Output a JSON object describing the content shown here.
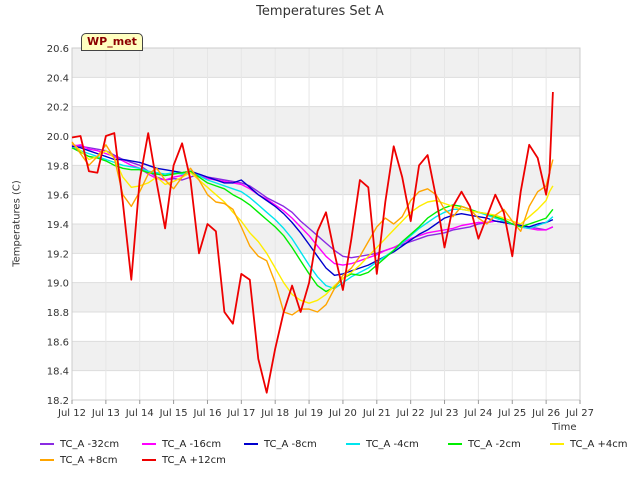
{
  "badge": "WP_met",
  "chart_data": {
    "type": "line",
    "title": "Temperatures Set A",
    "xlabel": "Time",
    "ylabel": "Temperatures (C)",
    "ylim": [
      18.2,
      20.6
    ],
    "xlim": [
      0,
      15
    ],
    "x_ticks": [
      "Jul 12",
      "Jul 13",
      "Jul 14",
      "Jul 15",
      "Jul 16",
      "Jul 17",
      "Jul 18",
      "Jul 19",
      "Jul 20",
      "Jul 21",
      "Jul 22",
      "Jul 23",
      "Jul 24",
      "Jul 25",
      "Jul 26",
      "Jul 27"
    ],
    "y_ticks": [
      18.2,
      18.4,
      18.6,
      18.8,
      19.0,
      19.2,
      19.4,
      19.6,
      19.8,
      20.0,
      20.2,
      20.4,
      20.6
    ],
    "grid": true,
    "legend_placement": "bottom",
    "x": [
      0,
      0.25,
      0.5,
      0.75,
      1,
      1.25,
      1.5,
      1.75,
      2,
      2.25,
      2.5,
      2.75,
      3,
      3.25,
      3.5,
      3.75,
      4,
      4.25,
      4.5,
      4.75,
      5,
      5.25,
      5.5,
      5.75,
      6,
      6.25,
      6.5,
      6.75,
      7,
      7.25,
      7.5,
      7.75,
      8,
      8.25,
      8.5,
      8.75,
      9,
      9.25,
      9.5,
      9.75,
      10,
      10.25,
      10.5,
      10.75,
      11,
      11.25,
      11.5,
      11.75,
      12,
      12.25,
      12.5,
      12.75,
      13,
      13.25,
      13.5,
      13.75,
      14,
      14.1,
      14.2
    ],
    "series": [
      {
        "name": "TC_A -32cm",
        "color": "#8a2be2",
        "values": [
          19.94,
          19.93,
          19.92,
          19.91,
          19.9,
          19.87,
          19.84,
          19.82,
          19.8,
          19.76,
          19.72,
          19.7,
          19.71,
          19.7,
          19.72,
          19.74,
          19.72,
          19.71,
          19.7,
          19.69,
          19.68,
          19.66,
          19.62,
          19.58,
          19.55,
          19.52,
          19.48,
          19.42,
          19.37,
          19.32,
          19.27,
          19.22,
          19.18,
          19.17,
          19.18,
          19.19,
          19.2,
          19.22,
          19.24,
          19.26,
          19.28,
          19.3,
          19.32,
          19.33,
          19.34,
          19.36,
          19.37,
          19.38,
          19.4,
          19.41,
          19.42,
          19.41,
          19.4,
          19.39,
          19.38,
          19.37,
          19.36,
          19.37,
          19.38
        ]
      },
      {
        "name": "TC_A -16cm",
        "color": "#ff00ff",
        "values": [
          19.93,
          19.94,
          19.91,
          19.9,
          19.88,
          19.86,
          19.83,
          19.8,
          19.78,
          19.74,
          19.71,
          19.7,
          19.72,
          19.73,
          19.75,
          19.73,
          19.71,
          19.7,
          19.69,
          19.68,
          19.67,
          19.64,
          19.6,
          19.57,
          19.53,
          19.49,
          19.44,
          19.38,
          19.32,
          19.25,
          19.18,
          19.13,
          19.12,
          19.13,
          19.15,
          19.17,
          19.19,
          19.22,
          19.24,
          19.27,
          19.3,
          19.32,
          19.34,
          19.35,
          19.36,
          19.37,
          19.39,
          19.4,
          19.41,
          19.41,
          19.42,
          19.41,
          19.4,
          19.38,
          19.37,
          19.36,
          19.36,
          19.37,
          19.38
        ]
      },
      {
        "name": "TC_A -8cm",
        "color": "#0000cd",
        "values": [
          19.93,
          19.92,
          19.9,
          19.88,
          19.86,
          19.84,
          19.84,
          19.83,
          19.82,
          19.8,
          19.78,
          19.77,
          19.76,
          19.75,
          19.76,
          19.74,
          19.72,
          19.7,
          19.68,
          19.68,
          19.7,
          19.65,
          19.6,
          19.56,
          19.52,
          19.47,
          19.41,
          19.34,
          19.26,
          19.18,
          19.1,
          19.05,
          19.06,
          19.08,
          19.1,
          19.12,
          19.15,
          19.18,
          19.21,
          19.25,
          19.29,
          19.33,
          19.36,
          19.4,
          19.44,
          19.46,
          19.47,
          19.46,
          19.45,
          19.44,
          19.42,
          19.41,
          19.4,
          19.39,
          19.38,
          19.4,
          19.41,
          19.42,
          19.43
        ]
      },
      {
        "name": "TC_A -4cm",
        "color": "#00e5ee",
        "values": [
          19.92,
          19.9,
          19.88,
          19.86,
          19.84,
          19.82,
          19.8,
          19.79,
          19.78,
          19.76,
          19.75,
          19.74,
          19.75,
          19.74,
          19.75,
          19.73,
          19.7,
          19.68,
          19.66,
          19.64,
          19.62,
          19.58,
          19.53,
          19.48,
          19.43,
          19.37,
          19.3,
          19.21,
          19.12,
          19.04,
          18.98,
          18.96,
          19.0,
          19.04,
          19.07,
          19.1,
          19.14,
          19.18,
          19.22,
          19.27,
          19.32,
          19.37,
          19.41,
          19.45,
          19.48,
          19.5,
          19.5,
          19.49,
          19.48,
          19.46,
          19.44,
          19.42,
          19.4,
          19.38,
          19.37,
          19.39,
          19.41,
          19.43,
          19.45
        ]
      },
      {
        "name": "TC_A -2cm",
        "color": "#00ee00",
        "values": [
          19.92,
          19.89,
          19.86,
          19.85,
          19.83,
          19.8,
          19.78,
          19.77,
          19.77,
          19.75,
          19.74,
          19.73,
          19.74,
          19.75,
          19.76,
          19.72,
          19.68,
          19.66,
          19.64,
          19.6,
          19.57,
          19.53,
          19.48,
          19.43,
          19.38,
          19.32,
          19.24,
          19.15,
          19.06,
          18.98,
          18.94,
          18.97,
          19.03,
          19.06,
          19.05,
          19.07,
          19.12,
          19.17,
          19.22,
          19.28,
          19.33,
          19.38,
          19.44,
          19.48,
          19.51,
          19.53,
          19.52,
          19.5,
          19.48,
          19.47,
          19.45,
          19.43,
          19.4,
          19.38,
          19.4,
          19.42,
          19.44,
          19.47,
          19.5
        ]
      },
      {
        "name": "TC_A +4cm",
        "color": "#ffee00",
        "values": [
          19.95,
          19.9,
          19.84,
          19.86,
          19.9,
          19.85,
          19.72,
          19.65,
          19.66,
          19.68,
          19.72,
          19.67,
          19.69,
          19.72,
          19.75,
          19.7,
          19.65,
          19.6,
          19.55,
          19.48,
          19.42,
          19.34,
          19.28,
          19.2,
          19.1,
          19.0,
          18.92,
          18.88,
          18.86,
          18.88,
          18.92,
          18.98,
          19.03,
          19.07,
          19.12,
          19.18,
          19.24,
          19.3,
          19.36,
          19.42,
          19.48,
          19.52,
          19.55,
          19.56,
          19.54,
          19.52,
          19.5,
          19.49,
          19.48,
          19.47,
          19.46,
          19.44,
          19.42,
          19.4,
          19.45,
          19.5,
          19.56,
          19.62,
          19.66
        ]
      },
      {
        "name": "TC_A +8cm",
        "color": "#ffa500",
        "values": [
          19.96,
          19.88,
          19.8,
          19.86,
          19.94,
          19.85,
          19.6,
          19.52,
          19.62,
          19.74,
          19.78,
          19.7,
          19.64,
          19.72,
          19.78,
          19.7,
          19.6,
          19.55,
          19.54,
          19.5,
          19.38,
          19.25,
          19.18,
          19.15,
          19.0,
          18.8,
          18.78,
          18.82,
          18.82,
          18.8,
          18.85,
          18.96,
          19.05,
          19.1,
          19.18,
          19.28,
          19.38,
          19.44,
          19.4,
          19.45,
          19.56,
          19.62,
          19.64,
          19.6,
          19.5,
          19.45,
          19.52,
          19.5,
          19.44,
          19.4,
          19.46,
          19.5,
          19.42,
          19.35,
          19.52,
          19.62,
          19.66,
          19.75,
          19.84
        ]
      },
      {
        "name": "TC_A +12cm",
        "color": "#ee0000",
        "values": [
          19.99,
          20.0,
          19.76,
          19.75,
          20.0,
          20.02,
          19.55,
          19.02,
          19.7,
          20.02,
          19.68,
          19.37,
          19.8,
          19.95,
          19.7,
          19.2,
          19.4,
          19.35,
          18.8,
          18.72,
          19.06,
          19.02,
          18.48,
          18.25,
          18.55,
          18.8,
          18.98,
          18.8,
          19.0,
          19.35,
          19.48,
          19.2,
          18.95,
          19.3,
          19.7,
          19.65,
          19.06,
          19.55,
          19.93,
          19.72,
          19.42,
          19.8,
          19.87,
          19.58,
          19.24,
          19.52,
          19.62,
          19.52,
          19.3,
          19.45,
          19.6,
          19.48,
          19.18,
          19.62,
          19.94,
          19.85,
          19.6,
          19.75,
          20.3
        ]
      }
    ]
  }
}
